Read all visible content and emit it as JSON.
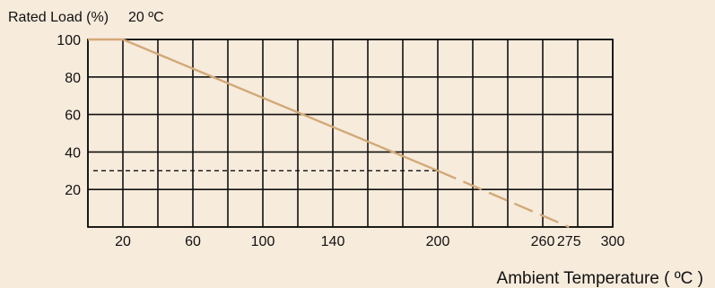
{
  "chart_data": {
    "type": "line",
    "ylabel": "Rated Load (%)",
    "annotation": "20 ºC",
    "xlabel": "Ambient Temperature ( ºC )",
    "xlim": [
      0,
      300
    ],
    "ylim": [
      0,
      100
    ],
    "x_grid": [
      0,
      20,
      40,
      60,
      80,
      100,
      120,
      140,
      160,
      180,
      200,
      220,
      240,
      260,
      280,
      300
    ],
    "y_grid": [
      0,
      20,
      40,
      60,
      80,
      100
    ],
    "x_ticks": [
      20,
      60,
      100,
      140,
      200,
      260,
      275,
      300
    ],
    "y_ticks": [
      20,
      40,
      60,
      80,
      100
    ],
    "series": [
      {
        "style": "solid",
        "color": "#d2a978",
        "x": [
          0,
          20,
          200
        ],
        "y": [
          100,
          100,
          30
        ]
      },
      {
        "style": "dashed",
        "color": "#d2a978",
        "x": [
          200,
          275
        ],
        "y": [
          30,
          0
        ]
      }
    ],
    "reference_line": {
      "style": "dashed",
      "color": "#111111",
      "y": 30,
      "x": [
        0,
        200
      ]
    },
    "grid": true
  }
}
